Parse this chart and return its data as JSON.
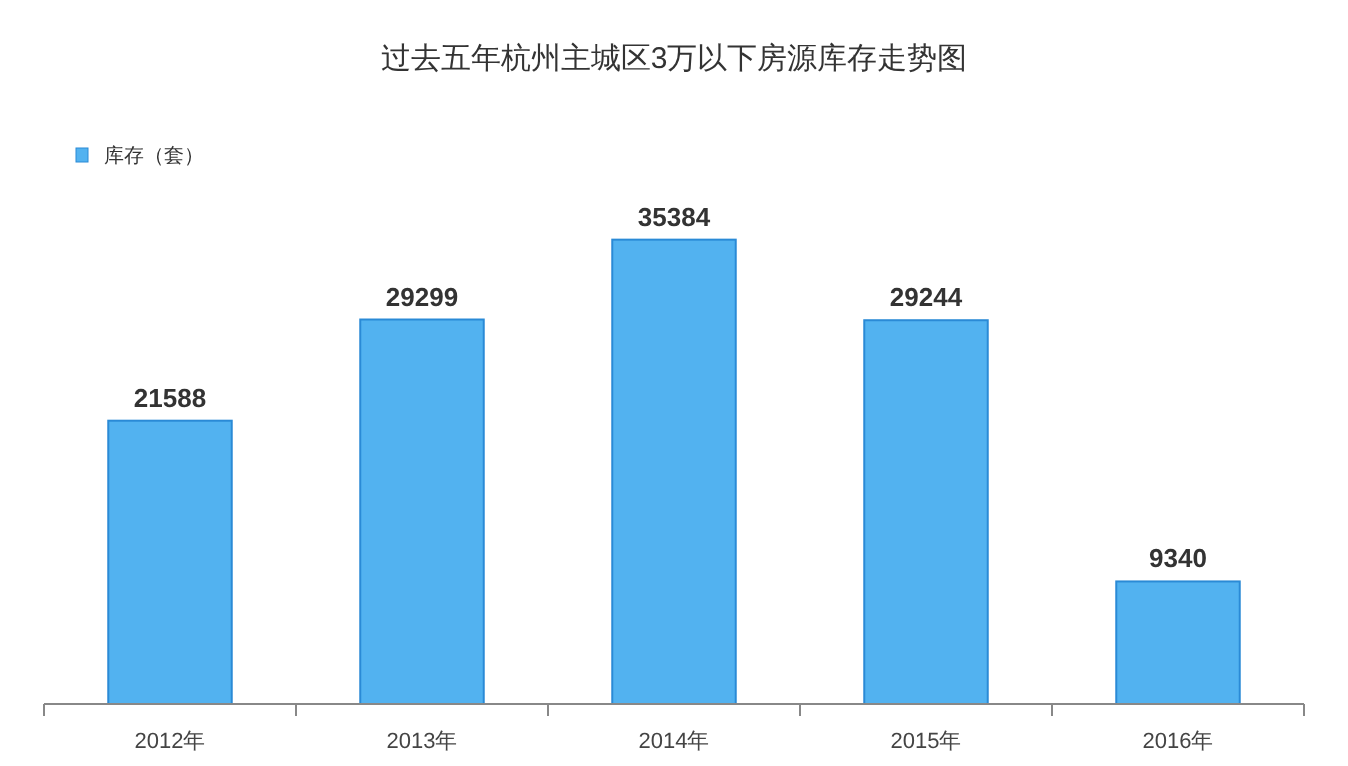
{
  "chart_data": {
    "type": "bar",
    "title": "过去五年杭州主城区3万以下房源库存走势图",
    "categories": [
      "2012年",
      "2013年",
      "2014年",
      "2015年",
      "2016年"
    ],
    "series": [
      {
        "name": "库存（套）",
        "color": "#52b2f0",
        "values": [
          21588,
          29299,
          35384,
          29244,
          9340
        ]
      }
    ],
    "data_labels": true,
    "legend": "top left",
    "grid": false
  }
}
